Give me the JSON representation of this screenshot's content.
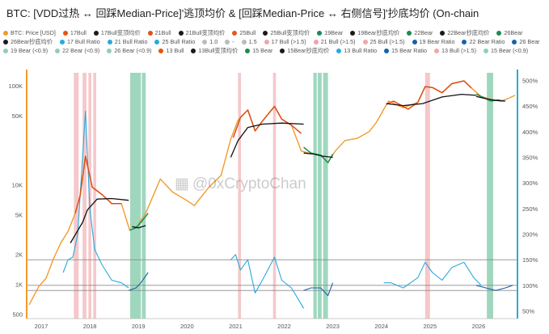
{
  "title": "BTC: [VDD过热 ↔ 回踩Median-Price]'逃顶均价 & [回踩Median-Price ↔ 右侧信号]'抄底均价 (On-chain",
  "watermark": "@0xCryptoChan",
  "colors": {
    "price": "#f39a2a",
    "ratio": "#29a9dd",
    "bull_line": "#111111",
    "bear_line": "#111111",
    "bull_segment": "#dd4d16",
    "bear_segment": "#1a8f55",
    "bull_band": "#ec9aa0",
    "bear_band": "#7fcaa8",
    "left_axis": "#f39a2a",
    "right_axis": "#29a9dd",
    "ratio_dark": "#1763a7"
  },
  "legend": [
    {
      "label": "BTC: Price [USD]",
      "color": "#f39a2a"
    },
    {
      "label": "17Bull",
      "color": "#e8530f"
    },
    {
      "label": "17Bull变顶均价",
      "color": "#1a1a1a"
    },
    {
      "label": "21Bull",
      "color": "#e05318"
    },
    {
      "label": "21Bull变顶均价",
      "color": "#1a1a1a"
    },
    {
      "label": "25Bull",
      "color": "#e15a1a"
    },
    {
      "label": "25Bull变顶均价",
      "color": "#1a1a1a"
    },
    {
      "label": "19Bear",
      "color": "#1b8a52"
    },
    {
      "label": "19Bear抄底均价",
      "color": "#1a1a1a"
    },
    {
      "label": "22Bear",
      "color": "#1b8a52"
    },
    {
      "label": "22Bear抄底均价",
      "color": "#1a1a1a"
    },
    {
      "label": "26Bear",
      "color": "#1b8a52"
    },
    {
      "label": "26Bear抄底均价",
      "color": "#1a1a1a"
    },
    {
      "label": "17 Bull Ratio",
      "color": "#29a9dd"
    },
    {
      "label": "21 Bull Ratio",
      "color": "#29a9dd"
    },
    {
      "label": "25 Bull Ratio",
      "color": "#29a9dd"
    },
    {
      "label": "1.0",
      "color": "#bbbbbb"
    },
    {
      "label": "-",
      "color": "#bbbbbb"
    },
    {
      "label": "1.5",
      "color": "#bbbbbb"
    },
    {
      "label": "17 Bull (>1.5)",
      "color": "#f2a5a5"
    },
    {
      "label": "21 Bull (>1.5)",
      "color": "#f2a5a5"
    },
    {
      "label": "25 Bull (>1.5)",
      "color": "#f2a5a5"
    },
    {
      "label": "19 Bear Ratio",
      "color": "#1763a7"
    },
    {
      "label": "22 Bear Ratio",
      "color": "#1763a7"
    },
    {
      "label": "26 Bear",
      "color": "#1763a7"
    },
    {
      "label": "19 Bear (<0.9)",
      "color": "#8fd0b4"
    },
    {
      "label": "22 Bear (<0.9)",
      "color": "#8fd0b4"
    },
    {
      "label": "26 Bear (<0.9)",
      "color": "#8fd0b4"
    },
    {
      "label": "13 Bull",
      "color": "#e8530f"
    },
    {
      "label": "13Bull变顶均价",
      "color": "#1a1a1a"
    },
    {
      "label": "15 Bear",
      "color": "#1b8a52"
    },
    {
      "label": "15Bear抄底均价",
      "color": "#1a1a1a"
    },
    {
      "label": "13 Bull Ratio",
      "color": "#29a9dd"
    },
    {
      "label": "15 Bear Ratio",
      "color": "#1763a7"
    },
    {
      "label": "13 Bull (>1.5)",
      "color": "#f2a5a5"
    },
    {
      "label": "15 Bear (<0.9)",
      "color": "#8fd0b4"
    }
  ],
  "chart_data": {
    "type": "line",
    "x_ticks": [
      "2017",
      "2018",
      "2019",
      "2020",
      "2021",
      "2022",
      "2023",
      "2024",
      "2025",
      "2026"
    ],
    "x_tick_years": [
      2017,
      2018,
      2019,
      2020,
      2021,
      2022,
      2023,
      2024,
      2025,
      2026
    ],
    "x_range": [
      2016.75,
      2026.85
    ],
    "y_left": {
      "scale": "log",
      "ticks": [
        500,
        1000,
        2000,
        5000,
        10000,
        50000,
        100000
      ],
      "tick_labels": [
        "500",
        "1K",
        "2K",
        "5K",
        "10K",
        "50K",
        "100K"
      ],
      "range": [
        450,
        135000
      ]
    },
    "y_right": {
      "scale": "linear",
      "ticks": [
        0.5,
        1.0,
        1.5,
        2.0,
        2.5,
        3.0,
        3.5,
        4.0,
        4.5,
        5.0
      ],
      "tick_labels": [
        "50%",
        "100%",
        "150%",
        "200%",
        "250%",
        "300%",
        "350%",
        "400%",
        "450%",
        "500%"
      ],
      "range": [
        0.35,
        5.15
      ]
    },
    "reference_lines_ratio": [
      1.0,
      0.9,
      1.5
    ],
    "series": [
      {
        "name": "BTC: Price [USD]",
        "role": "price",
        "x": [
          2016.8,
          2017.0,
          2017.15,
          2017.3,
          2017.45,
          2017.6,
          2017.75,
          2017.85,
          2017.96,
          2018.1,
          2018.3,
          2018.5,
          2018.7,
          2018.87,
          2019.0,
          2019.2,
          2019.5,
          2019.75,
          2020.0,
          2020.2,
          2020.5,
          2020.75,
          2020.95,
          2021.1,
          2021.3,
          2021.45,
          2021.6,
          2021.85,
          2022.0,
          2022.2,
          2022.4,
          2022.55,
          2022.8,
          2022.95,
          2023.1,
          2023.3,
          2023.55,
          2023.8,
          2023.95,
          2024.1,
          2024.2,
          2024.5,
          2024.8,
          2024.95,
          2025.1,
          2025.3,
          2025.5,
          2025.75,
          2025.9,
          2026.1,
          2026.3,
          2026.5,
          2026.65,
          2026.8
        ],
        "y": [
          620,
          950,
          1150,
          1800,
          2600,
          3400,
          5200,
          7800,
          19500,
          9500,
          8000,
          6500,
          6500,
          3500,
          3700,
          5200,
          11500,
          8500,
          7200,
          6200,
          9500,
          12500,
          29000,
          45000,
          57000,
          35000,
          44000,
          62000,
          46000,
          40000,
          22000,
          21000,
          20000,
          16800,
          22000,
          28000,
          29500,
          34500,
          43000,
          58000,
          70000,
          60000,
          68000,
          98000,
          96000,
          85000,
          105000,
          112000,
          95000,
          78000,
          73000,
          70000,
          74000,
          80000
        ]
      },
      {
        "name": "17Bull",
        "role": "bull",
        "x": [
          2017.75,
          2017.85,
          2017.96,
          2018.1,
          2018.3,
          2018.5,
          2018.7
        ],
        "y": [
          5200,
          7800,
          19500,
          9500,
          8000,
          6500,
          6500
        ]
      },
      {
        "name": "17Bull变顶均价",
        "role": "bull_avg",
        "x": [
          2017.65,
          2017.9,
          2018.0,
          2018.2,
          2018.5,
          2018.85
        ],
        "y": [
          2600,
          4200,
          5600,
          7200,
          7300,
          7000
        ]
      },
      {
        "name": "19Bear",
        "role": "bear",
        "x": [
          2018.87,
          2019.0,
          2019.1,
          2019.25
        ],
        "y": [
          3500,
          3700,
          4200,
          5200
        ]
      },
      {
        "name": "19Bear抄底均价",
        "role": "bear_avg",
        "x": [
          2018.92,
          2019.05,
          2019.2
        ],
        "y": [
          3800,
          3700,
          3900
        ]
      },
      {
        "name": "21Bull",
        "role": "bull",
        "x": [
          2021.0,
          2021.15,
          2021.3,
          2021.45,
          2021.6,
          2021.85,
          2022.0,
          2022.2,
          2022.4
        ],
        "y": [
          30000,
          48000,
          57000,
          35000,
          44000,
          62000,
          46000,
          40000,
          33000
        ]
      },
      {
        "name": "21Bull变顶均价",
        "role": "bull_avg",
        "x": [
          2020.95,
          2021.1,
          2021.3,
          2021.6,
          2022.0,
          2022.45
        ],
        "y": [
          19000,
          28000,
          38000,
          41000,
          42000,
          41000
        ]
      },
      {
        "name": "22Bear",
        "role": "bear",
        "x": [
          2022.45,
          2022.6,
          2022.8,
          2022.95,
          2023.05
        ],
        "y": [
          24000,
          21000,
          20000,
          16800,
          20500
        ]
      },
      {
        "name": "22Bear抄底均价",
        "role": "bear_avg",
        "x": [
          2022.45,
          2022.65,
          2022.85,
          2023.05
        ],
        "y": [
          21000,
          20500,
          19500,
          19000
        ]
      },
      {
        "name": "25Bull",
        "role": "bull",
        "x": [
          2024.15,
          2024.3,
          2024.6,
          2024.8,
          2024.95,
          2025.1,
          2025.3,
          2025.5,
          2025.75,
          2025.9
        ],
        "y": [
          65000,
          70000,
          58000,
          68000,
          98000,
          96000,
          85000,
          105000,
          112000,
          95000
        ]
      },
      {
        "name": "25Bull变顶均价",
        "role": "bull_avg",
        "x": [
          2024.15,
          2024.5,
          2024.9,
          2025.3,
          2025.7,
          2026.0
        ],
        "y": [
          66000,
          63000,
          66000,
          77000,
          82000,
          80000
        ]
      },
      {
        "name": "26Bear",
        "role": "bear",
        "x": [
          2026.0,
          2026.15,
          2026.3,
          2026.45,
          2026.55
        ],
        "y": [
          82000,
          76000,
          70000,
          72000,
          70000
        ]
      },
      {
        "name": "26Bear抄底均价",
        "role": "bear_avg",
        "x": [
          2026.0,
          2026.2,
          2026.4,
          2026.6
        ],
        "y": [
          78000,
          74000,
          71000,
          70000
        ]
      },
      {
        "name": "17 Bull Ratio",
        "role": "ratio",
        "x": [
          2017.5,
          2017.6,
          2017.7,
          2017.8,
          2017.9,
          2017.96,
          2018.05,
          2018.15,
          2018.3,
          2018.5,
          2018.7,
          2018.85
        ],
        "y": [
          1.25,
          1.5,
          1.55,
          2.0,
          3.5,
          4.4,
          2.5,
          1.7,
          1.4,
          1.1,
          1.05,
          0.95
        ]
      },
      {
        "name": "19 Bear Ratio",
        "role": "ratio_bear",
        "x": [
          2018.85,
          2019.0,
          2019.1,
          2019.25
        ],
        "y": [
          0.9,
          0.95,
          1.05,
          1.25
        ]
      },
      {
        "name": "21 Bull Ratio",
        "role": "ratio",
        "x": [
          2020.95,
          2021.05,
          2021.15,
          2021.3,
          2021.45,
          2021.6,
          2021.85,
          2022.0,
          2022.2,
          2022.45
        ],
        "y": [
          1.5,
          1.6,
          1.3,
          1.5,
          0.85,
          1.1,
          1.55,
          1.1,
          0.95,
          0.55
        ]
      },
      {
        "name": "22 Bear Ratio",
        "role": "ratio_bear",
        "x": [
          2022.45,
          2022.6,
          2022.8,
          2022.95,
          2023.05
        ],
        "y": [
          0.9,
          0.95,
          0.95,
          0.8,
          1.05
        ]
      },
      {
        "name": "25 Bull Ratio",
        "role": "ratio",
        "x": [
          2024.1,
          2024.25,
          2024.5,
          2024.8,
          2024.95,
          2025.1,
          2025.3,
          2025.5,
          2025.75,
          2025.95,
          2026.1
        ],
        "y": [
          1.05,
          1.05,
          0.95,
          1.15,
          1.45,
          1.25,
          1.1,
          1.35,
          1.45,
          1.15,
          1.0
        ]
      },
      {
        "name": "26 Bear",
        "role": "ratio_bear",
        "x": [
          2026.0,
          2026.2,
          2026.4,
          2026.6,
          2026.75
        ],
        "y": [
          1.0,
          0.95,
          0.9,
          0.95,
          1.0
        ]
      }
    ],
    "bull_bands": [
      [
        2017.72,
        2017.82
      ],
      [
        2017.9,
        2017.98
      ],
      [
        2018.02,
        2018.08
      ],
      [
        2018.12,
        2018.18
      ],
      [
        2021.1,
        2021.16
      ],
      [
        2021.82,
        2021.88
      ],
      [
        2024.95,
        2025.05
      ]
    ],
    "bear_bands": [
      [
        2018.88,
        2019.1
      ],
      [
        2019.12,
        2019.2
      ],
      [
        2022.65,
        2022.72
      ],
      [
        2022.74,
        2022.82
      ],
      [
        2022.85,
        2022.95
      ],
      [
        2026.22,
        2026.35
      ]
    ]
  }
}
